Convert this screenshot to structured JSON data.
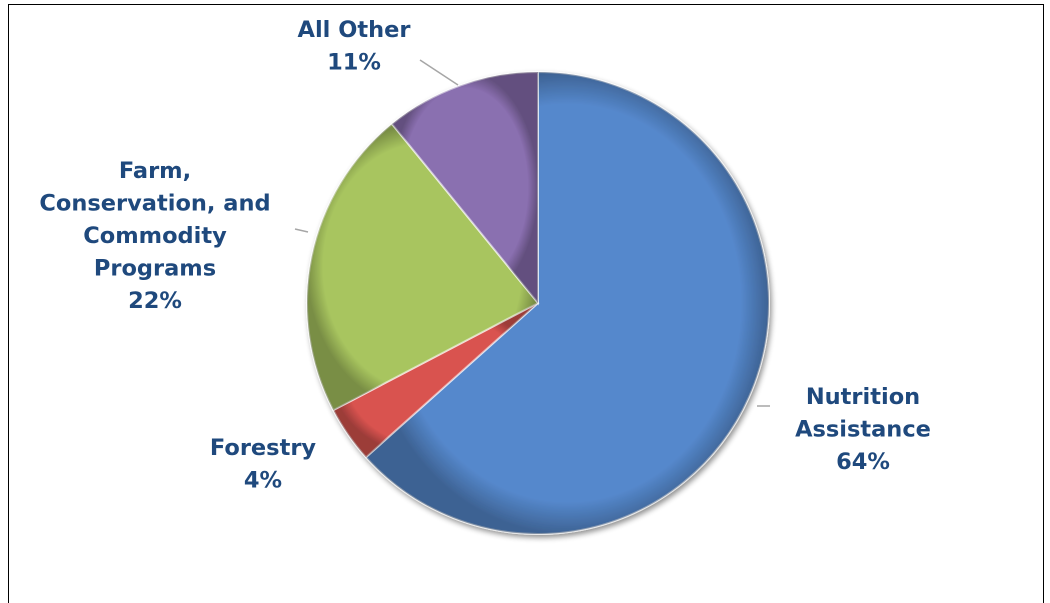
{
  "chart_data": {
    "type": "pie",
    "title": "",
    "slices": [
      {
        "label_lines": [
          "Nutrition",
          "Assistance"
        ],
        "value": 64,
        "value_label": "64%",
        "color": "#5588cc"
      },
      {
        "label_lines": [
          "Forestry"
        ],
        "value": 4,
        "value_label": "4%",
        "color": "#d9534f"
      },
      {
        "label_lines": [
          "Farm,",
          "Conservation, and",
          "Commodity",
          "Programs"
        ],
        "value": 22,
        "value_label": "22%",
        "color": "#a8c55f"
      },
      {
        "label_lines": [
          "All Other"
        ],
        "value": 11,
        "value_label": "11%",
        "color": "#8a6fb0"
      }
    ],
    "start_angle_deg": 0,
    "direction": "clockwise",
    "label_color": "#1f497d",
    "leader_color": "#a6a6a6",
    "legend": "none"
  }
}
